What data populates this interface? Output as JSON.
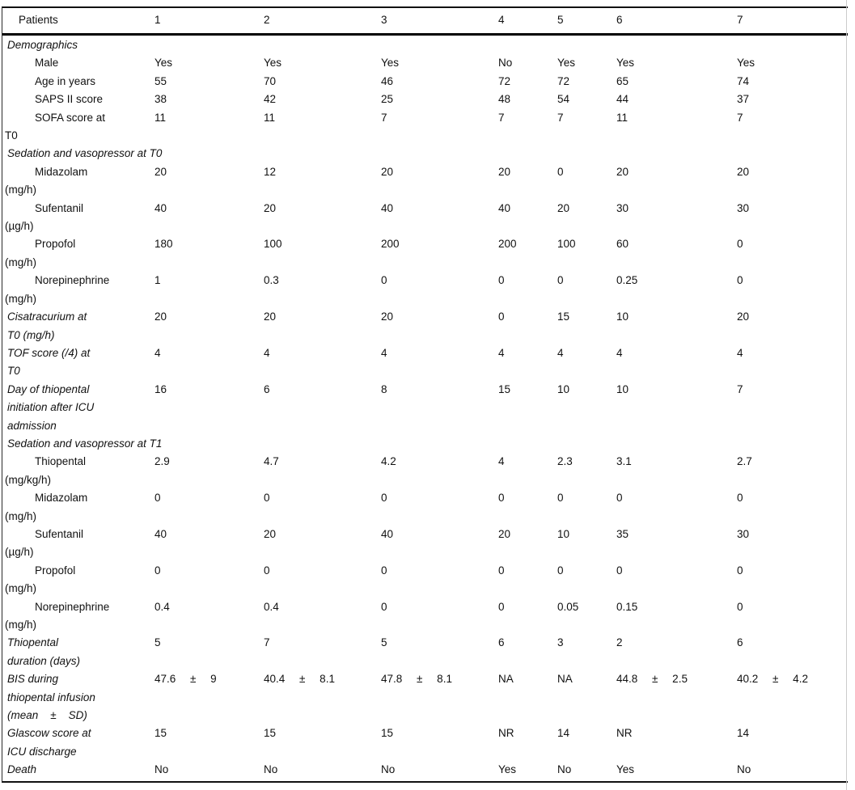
{
  "table": {
    "header": {
      "label": "Patients",
      "cols": [
        "1",
        "2",
        "3",
        "4",
        "5",
        "6",
        "7"
      ]
    },
    "rows": [
      {
        "type": "section",
        "label": [
          "Demographics"
        ]
      },
      {
        "type": "sub",
        "label": [
          "Male"
        ],
        "values": [
          "Yes",
          "Yes",
          "Yes",
          "No",
          "Yes",
          "Yes",
          "Yes"
        ]
      },
      {
        "type": "sub",
        "label": [
          "Age in years"
        ],
        "values": [
          "55",
          "70",
          "46",
          "72",
          "72",
          "65",
          "74"
        ]
      },
      {
        "type": "sub",
        "label": [
          "SAPS II score"
        ],
        "values": [
          "38",
          "42",
          "25",
          "48",
          "54",
          "44",
          "37"
        ]
      },
      {
        "type": "sub",
        "label": [
          "SOFA score at",
          "T0"
        ],
        "values": [
          "11",
          "11",
          "7",
          "7",
          "7",
          "11",
          "7"
        ]
      },
      {
        "type": "section",
        "label": [
          "Sedation and vasopressor at T0"
        ]
      },
      {
        "type": "sub",
        "label": [
          "Midazolam",
          "(mg/h)"
        ],
        "values": [
          "20",
          "12",
          "20",
          "20",
          "0",
          "20",
          "20"
        ]
      },
      {
        "type": "sub",
        "label": [
          "Sufentanil",
          "(µg/h)"
        ],
        "values": [
          "40",
          "20",
          "40",
          "40",
          "20",
          "30",
          "30"
        ]
      },
      {
        "type": "sub",
        "label": [
          "Propofol",
          "(mg/h)"
        ],
        "values": [
          "180",
          "100",
          "200",
          "200",
          "100",
          "60",
          "0"
        ]
      },
      {
        "type": "sub",
        "label": [
          "Norepinephrine",
          "(mg/h)"
        ],
        "values": [
          "1",
          "0.3",
          "0",
          "0",
          "0",
          "0.25",
          "0"
        ]
      },
      {
        "type": "italic",
        "label": [
          "Cisatracurium at",
          "T0 (mg/h)"
        ],
        "values": [
          "20",
          "20",
          "20",
          "0",
          "15",
          "10",
          "20"
        ]
      },
      {
        "type": "italic",
        "label": [
          "TOF score (/4) at",
          "T0"
        ],
        "values": [
          "4",
          "4",
          "4",
          "4",
          "4",
          "4",
          "4"
        ]
      },
      {
        "type": "italic",
        "label": [
          "Day of thiopental",
          "initiation after ICU",
          "admission"
        ],
        "values": [
          "16",
          "6",
          "8",
          "15",
          "10",
          "10",
          "7"
        ]
      },
      {
        "type": "section",
        "label": [
          "Sedation and vasopressor at T1"
        ]
      },
      {
        "type": "sub",
        "label": [
          "Thiopental",
          "(mg/kg/h)"
        ],
        "values": [
          "2.9",
          "4.7",
          "4.2",
          "4",
          "2.3",
          "3.1",
          "2.7"
        ]
      },
      {
        "type": "sub",
        "label": [
          "Midazolam",
          "(mg/h)"
        ],
        "values": [
          "0",
          "0",
          "0",
          "0",
          "0",
          "0",
          "0"
        ]
      },
      {
        "type": "sub",
        "label": [
          "Sufentanil",
          "(µg/h)"
        ],
        "values": [
          "40",
          "20",
          "40",
          "20",
          "10",
          "35",
          "30"
        ]
      },
      {
        "type": "sub",
        "label": [
          "Propofol",
          "(mg/h)"
        ],
        "values": [
          "0",
          "0",
          "0",
          "0",
          "0",
          "0",
          "0"
        ]
      },
      {
        "type": "sub",
        "label": [
          "Norepinephrine",
          "(mg/h)"
        ],
        "values": [
          "0.4",
          "0.4",
          "0",
          "0",
          "0.05",
          "0.15",
          "0"
        ]
      },
      {
        "type": "italic",
        "label": [
          "Thiopental",
          "duration (days)"
        ],
        "values": [
          "5",
          "7",
          "5",
          "6",
          "3",
          "2",
          "6"
        ]
      },
      {
        "type": "italic",
        "wide": true,
        "label": [
          "BIS during",
          "thiopental infusion",
          "(mean    ±    SD)"
        ],
        "values": [
          "47.6 ± 9",
          "40.4 ± 8.1",
          "47.8 ± 8.1",
          "NA",
          "NA",
          "44.8 ± 2.5",
          "40.2 ± 4.2"
        ]
      },
      {
        "type": "italic",
        "label": [
          "Glascow score at",
          "ICU discharge"
        ],
        "values": [
          "15",
          "15",
          "15",
          "NR",
          "14",
          "NR",
          "14"
        ]
      },
      {
        "type": "italic",
        "label": [
          "Death"
        ],
        "values": [
          "No",
          "No",
          "No",
          "Yes",
          "No",
          "Yes",
          "No"
        ]
      }
    ]
  }
}
